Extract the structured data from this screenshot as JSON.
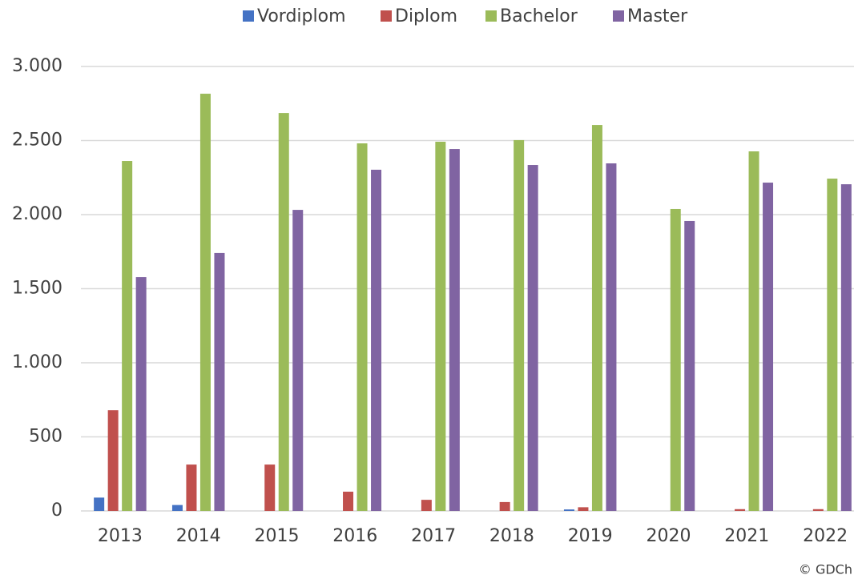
{
  "chart_data": {
    "type": "bar",
    "categories": [
      "2013",
      "2014",
      "2015",
      "2016",
      "2017",
      "2018",
      "2019",
      "2020",
      "2021",
      "2022"
    ],
    "series": [
      {
        "name": "Vordiplom",
        "color": "#4472c4",
        "values": [
          90,
          40,
          0,
          0,
          0,
          0,
          10,
          0,
          0,
          0
        ]
      },
      {
        "name": "Diplom",
        "color": "#c0504d",
        "values": [
          680,
          313,
          313,
          130,
          75,
          60,
          25,
          0,
          12,
          12
        ]
      },
      {
        "name": "Bachelor",
        "color": "#9bbb59",
        "values": [
          2362,
          2816,
          2686,
          2481,
          2492,
          2503,
          2605,
          2038,
          2427,
          2243
        ]
      },
      {
        "name": "Master",
        "color": "#8064a2",
        "values": [
          1578,
          1741,
          2032,
          2303,
          2443,
          2335,
          2346,
          1957,
          2216,
          2205
        ]
      }
    ],
    "ylim": [
      0,
      3000
    ],
    "yticks": [
      0,
      500,
      {
        "value": 1000,
        "label": "1.000"
      },
      {
        "value": 1500,
        "label": "1.500"
      },
      {
        "value": 2000,
        "label": "2.000"
      },
      {
        "value": 2500,
        "label": "2.500"
      },
      {
        "value": 3000,
        "label": "3.000"
      }
    ],
    "grid": true,
    "legend": "top",
    "source": "© GDCh"
  }
}
